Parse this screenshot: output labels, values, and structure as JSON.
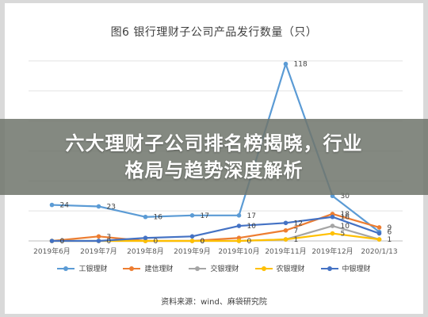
{
  "banner": {
    "line1": "六大理财子公司排名榜揭晓，行业",
    "line2": "格局与趋势深度解析"
  },
  "source": "资料来源：wind、麻袋研究院",
  "chart_data": {
    "type": "line",
    "title": "图6 银行理财子公司产品发行数量（只）",
    "categories": [
      "2019年6月",
      "2019年7月",
      "2019年8月",
      "2019年9月",
      "2019年10月",
      "2019年11月",
      "2019年12月",
      "2020/1/13"
    ],
    "ylim": [
      0,
      130
    ],
    "grid": true,
    "legend_position": "bottom",
    "series": [
      {
        "name": "工银理财",
        "color": "#5b9bd5",
        "values": [
          24,
          23,
          16,
          17,
          17,
          118,
          30,
          6
        ]
      },
      {
        "name": "建信理财",
        "color": "#ed7d31",
        "values": [
          0,
          3,
          0,
          0,
          2,
          7,
          18,
          9
        ]
      },
      {
        "name": "交银理财",
        "color": "#a5a5a5",
        "values": [
          0,
          0,
          0,
          0,
          0,
          1,
          10,
          1
        ]
      },
      {
        "name": "农银理财",
        "color": "#ffc000",
        "values": [
          0,
          0,
          0,
          0,
          0,
          1,
          5,
          1
        ]
      },
      {
        "name": "中银理财",
        "color": "#4472c4",
        "values": [
          0,
          0,
          2,
          3,
          10,
          12,
          16,
          5
        ]
      }
    ],
    "data_labels": [
      {
        "series": "工银理财",
        "values": [
          "24",
          "23",
          "16",
          "17",
          "17",
          "118",
          "30",
          "6"
        ]
      },
      {
        "series": "建信理财",
        "values": [
          "0",
          "3",
          "0",
          "0",
          "",
          "7",
          "18",
          "9"
        ]
      },
      {
        "series": "交银理财",
        "values": [
          "",
          "0",
          "",
          "0",
          "",
          "",
          "10",
          ""
        ]
      },
      {
        "series": "农银理财",
        "values": [
          "",
          "",
          "",
          "",
          "0",
          "1",
          "5",
          "1"
        ]
      },
      {
        "series": "中银理财",
        "values": [
          "0",
          "",
          "",
          "",
          "10",
          "12",
          "16",
          ""
        ]
      }
    ]
  }
}
